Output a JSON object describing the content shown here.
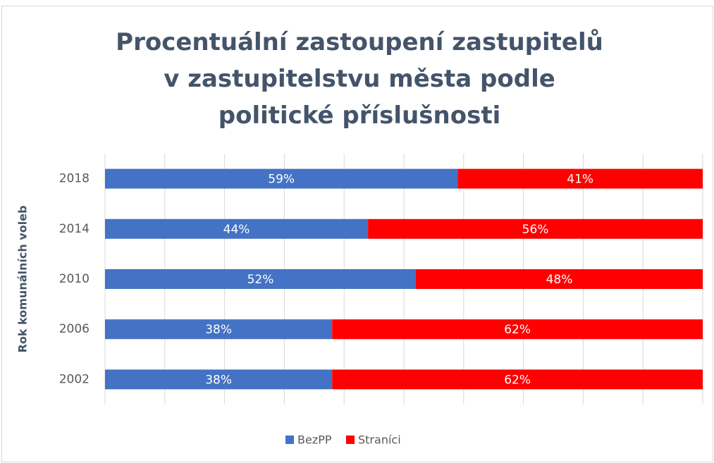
{
  "chart_data": {
    "type": "stacked_barh",
    "title": "Procentuální zastoupení zastupitelů v zastupitelstvu města podle politické příslušnosti",
    "ylabel": "Rok komunálních voleb",
    "categories": [
      "2002",
      "2006",
      "2010",
      "2014",
      "2018"
    ],
    "series": [
      {
        "name": "BezPP",
        "color": "#4472c4",
        "values": [
          38,
          38,
          52,
          44,
          59
        ],
        "value_labels": [
          "38%",
          "38%",
          "52%",
          "44%",
          "59%"
        ]
      },
      {
        "name": "Straníci",
        "color": "#ff0000",
        "values": [
          62,
          62,
          48,
          56,
          41
        ],
        "value_labels": [
          "62%",
          "62%",
          "48%",
          "56%",
          "41%"
        ]
      }
    ],
    "xlim": [
      0,
      100
    ],
    "xticks": [
      0,
      10,
      20,
      30,
      40,
      50,
      60,
      70,
      80,
      90,
      100
    ],
    "grid": true,
    "legend": "bottom"
  }
}
